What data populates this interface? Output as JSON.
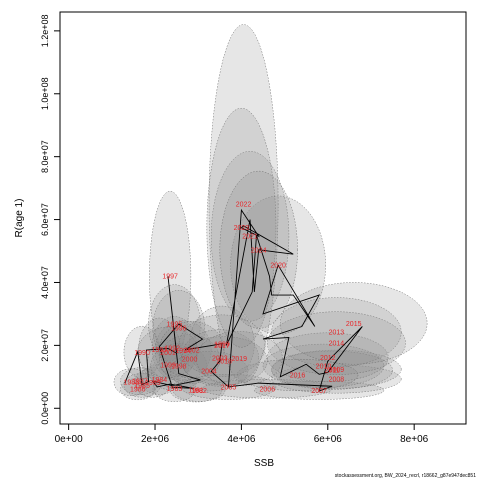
{
  "chart_data": {
    "type": "scatter",
    "xlabel": "SSB",
    "ylabel": "R(age 1)",
    "xlim": [
      -200000,
      9200000
    ],
    "ylim": [
      -5000000,
      126000000
    ],
    "xticks": [
      0,
      2000000,
      4000000,
      6000000,
      8000000
    ],
    "xtick_labels": [
      "0e+00",
      "2e+06",
      "4e+06",
      "6e+06",
      "8e+06"
    ],
    "yticks": [
      0,
      20000000,
      40000000,
      60000000,
      80000000,
      100000000,
      120000000
    ],
    "ytick_labels": [
      "0.0e+00",
      "2.0e+07",
      "4.0e+07",
      "6.0e+07",
      "8.0e+07",
      "1.0e+08",
      "1.2e+08"
    ],
    "footer": "stockassessment.org, BW_2024_recrl, r18662_g87e947dec851",
    "points": [
      {
        "year": "1981",
        "x": 2950000,
        "y": 5800000,
        "rx": 600000,
        "ry": 3800000
      },
      {
        "year": "1982",
        "x": 3020000,
        "y": 5700000,
        "rx": 600000,
        "ry": 3500000
      },
      {
        "year": "1983",
        "x": 2450000,
        "y": 6300000,
        "rx": 500000,
        "ry": 4200000
      },
      {
        "year": "1984",
        "x": 2100000,
        "y": 9200000,
        "rx": 450000,
        "ry": 4800000
      },
      {
        "year": "1985",
        "x": 1700000,
        "y": 7300000,
        "rx": 420000,
        "ry": 3800000
      },
      {
        "year": "1986",
        "x": 1600000,
        "y": 6100000,
        "rx": 400000,
        "ry": 3400000
      },
      {
        "year": "1987",
        "x": 1650000,
        "y": 8600000,
        "rx": 450000,
        "ry": 4300000
      },
      {
        "year": "1988",
        "x": 1450000,
        "y": 8300000,
        "rx": 400000,
        "ry": 4300000
      },
      {
        "year": "1989",
        "x": 1950000,
        "y": 8200000,
        "rx": 420000,
        "ry": 4700000
      },
      {
        "year": "1990",
        "x": 1700000,
        "y": 17800000,
        "rx": 420000,
        "ry": 8300000
      },
      {
        "year": "1991",
        "x": 2100000,
        "y": 18700000,
        "rx": 480000,
        "ry": 10000000
      },
      {
        "year": "1992",
        "x": 2450000,
        "y": 19200000,
        "rx": 520000,
        "ry": 10000000
      },
      {
        "year": "1993",
        "x": 2300000,
        "y": 13800000,
        "rx": 480000,
        "ry": 7800000
      },
      {
        "year": "1994",
        "x": 2650000,
        "y": 18400000,
        "rx": 650000,
        "ry": 9500000
      },
      {
        "year": "1995",
        "x": 2450000,
        "y": 26800000,
        "rx": 600000,
        "ry": 12500000
      },
      {
        "year": "1996",
        "x": 2550000,
        "y": 25500000,
        "rx": 600000,
        "ry": 12000000
      },
      {
        "year": "1997",
        "x": 2350000,
        "y": 42000000,
        "rx": 480000,
        "ry": 27000000
      },
      {
        "year": "1998",
        "x": 2550000,
        "y": 13400000,
        "rx": 650000,
        "ry": 7200000
      },
      {
        "year": "1999",
        "x": 3550000,
        "y": 20500000,
        "rx": 750000,
        "ry": 12000000
      },
      {
        "year": "2000",
        "x": 2800000,
        "y": 15600000,
        "rx": 700000,
        "ry": 7800000
      },
      {
        "year": "2001",
        "x": 2300000,
        "y": 17800000,
        "rx": 700000,
        "ry": 8000000
      },
      {
        "year": "2002",
        "x": 2850000,
        "y": 18600000,
        "rx": 750000,
        "ry": 9000000
      },
      {
        "year": "2003",
        "x": 3500000,
        "y": 16000000,
        "rx": 900000,
        "ry": 9000000
      },
      {
        "year": "2004",
        "x": 3250000,
        "y": 11800000,
        "rx": 900000,
        "ry": 6300000
      },
      {
        "year": "2005",
        "x": 3700000,
        "y": 6800000,
        "rx": 1100000,
        "ry": 4000000
      },
      {
        "year": "2006",
        "x": 4600000,
        "y": 6200000,
        "rx": 1500000,
        "ry": 3000000
      },
      {
        "year": "2007",
        "x": 5800000,
        "y": 5700000,
        "rx": 1500000,
        "ry": 2900000
      },
      {
        "year": "2008",
        "x": 6200000,
        "y": 9300000,
        "rx": 1500000,
        "ry": 4500000
      },
      {
        "year": "2009",
        "x": 6200000,
        "y": 12400000,
        "rx": 1500000,
        "ry": 6100000
      },
      {
        "year": "2010",
        "x": 5900000,
        "y": 13500000,
        "rx": 1400000,
        "ry": 6900000
      },
      {
        "year": "2011",
        "x": 6100000,
        "y": 12100000,
        "rx": 1400000,
        "ry": 6100000
      },
      {
        "year": "2012",
        "x": 6000000,
        "y": 16200000,
        "rx": 1400000,
        "ry": 7800000
      },
      {
        "year": "2013",
        "x": 6200000,
        "y": 24200000,
        "rx": 1500000,
        "ry": 11000000
      },
      {
        "year": "2014",
        "x": 6200000,
        "y": 20700000,
        "rx": 1600000,
        "ry": 10000000
      },
      {
        "year": "2015",
        "x": 6600000,
        "y": 27000000,
        "rx": 1700000,
        "ry": 13000000
      },
      {
        "year": "2016",
        "x": 5300000,
        "y": 10600000,
        "rx": 1400000,
        "ry": 5000000
      },
      {
        "year": "2017",
        "x": 3550000,
        "y": 19900000,
        "rx": 1000000,
        "ry": 9800000
      },
      {
        "year": "2018",
        "x": 3600000,
        "y": 15100000,
        "rx": 1000000,
        "ry": 7700000
      },
      {
        "year": "2019",
        "x": 3950000,
        "y": 15800000,
        "rx": 1000000,
        "ry": 8600000
      },
      {
        "year": "2020",
        "x": 4850000,
        "y": 45500000,
        "rx": 1100000,
        "ry": 22000000
      },
      {
        "year": "2021",
        "x": 4200000,
        "y": 54700000,
        "rx": 900000,
        "ry": 27000000
      },
      {
        "year": "2022",
        "x": 4050000,
        "y": 65000000,
        "rx": 800000,
        "ry": 57000000
      },
      {
        "year": "2023",
        "x": 4000000,
        "y": 57400000,
        "rx": 800000,
        "ry": 38000000
      },
      {
        "year": "2024",
        "x": 4400000,
        "y": 50400000,
        "rx": 900000,
        "ry": 25000000
      }
    ],
    "labeled_points": [
      {
        "year": "1997",
        "x": 2350000,
        "y": 42000000
      },
      {
        "year": "1998",
        "x": 2550000,
        "y": 13400000
      },
      {
        "year": "1990",
        "x": 1700000,
        "y": 17800000
      },
      {
        "year": "1993",
        "x": 2300000,
        "y": 13800000
      }
    ],
    "path": [
      [
        1300000,
        8000000
      ],
      [
        1600000,
        18000000
      ],
      [
        1700000,
        7500000
      ],
      [
        1850000,
        8500000
      ],
      [
        1800000,
        18500000
      ],
      [
        2300000,
        19000000
      ],
      [
        2500000,
        17500000
      ],
      [
        2300000,
        42000000
      ],
      [
        2550000,
        11000000
      ],
      [
        3050000,
        9000000
      ],
      [
        2400000,
        7200000
      ],
      [
        1950000,
        8600000
      ],
      [
        2050000,
        6800000
      ],
      [
        2350000,
        7700000
      ],
      [
        2900000,
        6300000
      ],
      [
        2400000,
        6700000
      ],
      [
        2100000,
        19600000
      ],
      [
        2550000,
        26800000
      ],
      [
        3100000,
        22000000
      ],
      [
        2700000,
        18600000
      ],
      [
        3550000,
        20500000
      ],
      [
        3500000,
        15000000
      ],
      [
        3300000,
        11700000
      ],
      [
        3700000,
        6800000
      ],
      [
        4000000,
        63000000
      ],
      [
        4400000,
        54700000
      ],
      [
        4000000,
        57400000
      ],
      [
        4050000,
        58000000
      ],
      [
        5200000,
        49000000
      ],
      [
        4400000,
        50400000
      ],
      [
        4300000,
        37000000
      ],
      [
        4200000,
        60000000
      ],
      [
        3650000,
        20000000
      ],
      [
        4250000,
        37000000
      ],
      [
        4350000,
        55000000
      ],
      [
        4650000,
        42000000
      ],
      [
        4700000,
        36000000
      ],
      [
        5200000,
        36000000
      ],
      [
        5700000,
        26000000
      ],
      [
        4850000,
        45500000
      ],
      [
        4500000,
        30000000
      ],
      [
        5800000,
        36000000
      ],
      [
        5400000,
        26000000
      ],
      [
        4500000,
        22000000
      ],
      [
        5100000,
        22500000
      ],
      [
        4900000,
        10000000
      ],
      [
        5500000,
        14000000
      ],
      [
        5800000,
        10800000
      ],
      [
        6000000,
        11400000
      ],
      [
        6800000,
        26000000
      ],
      [
        6000000,
        15000000
      ],
      [
        5800000,
        5500000
      ],
      [
        6100000,
        7000000
      ],
      [
        4400000,
        8000000
      ],
      [
        3700000,
        6800000
      ]
    ],
    "year_labels": [
      {
        "year": "1997",
        "x": 2350000,
        "y": 42000000
      },
      {
        "year": "1995",
        "x": 2450000,
        "y": 26800000
      },
      {
        "year": "1996",
        "x": 2550000,
        "y": 25500000
      },
      {
        "year": "1990",
        "x": 1700000,
        "y": 17800000
      },
      {
        "year": "1991",
        "x": 2100000,
        "y": 18700000
      },
      {
        "year": "1992",
        "x": 2400000,
        "y": 19200000
      },
      {
        "year": "1994",
        "x": 2650000,
        "y": 18400000
      },
      {
        "year": "1993",
        "x": 2300000,
        "y": 13800000
      },
      {
        "year": "1998",
        "x": 2550000,
        "y": 13400000
      },
      {
        "year": "1999",
        "x": 3550000,
        "y": 20500000
      },
      {
        "year": "2000",
        "x": 2800000,
        "y": 15600000
      },
      {
        "year": "2001",
        "x": 2300000,
        "y": 17800000
      },
      {
        "year": "2002",
        "x": 2850000,
        "y": 18600000
      },
      {
        "year": "2003",
        "x": 3500000,
        "y": 16000000
      },
      {
        "year": "2004",
        "x": 3250000,
        "y": 11800000
      },
      {
        "year": "2005",
        "x": 3700000,
        "y": 6800000
      },
      {
        "year": "2006",
        "x": 4600000,
        "y": 6200000
      },
      {
        "year": "2007",
        "x": 5800000,
        "y": 5700000
      },
      {
        "year": "2008",
        "x": 6200000,
        "y": 9300000
      },
      {
        "year": "2009",
        "x": 6200000,
        "y": 12400000
      },
      {
        "year": "2010",
        "x": 5900000,
        "y": 13500000
      },
      {
        "year": "2011",
        "x": 6100000,
        "y": 12100000
      },
      {
        "year": "2012",
        "x": 6000000,
        "y": 16200000
      },
      {
        "year": "2013",
        "x": 6200000,
        "y": 24200000
      },
      {
        "year": "2014",
        "x": 6200000,
        "y": 20700000
      },
      {
        "year": "2015",
        "x": 6600000,
        "y": 27000000
      },
      {
        "year": "2016",
        "x": 5300000,
        "y": 10600000
      },
      {
        "year": "2017",
        "x": 3550000,
        "y": 19900000
      },
      {
        "year": "2018",
        "x": 3600000,
        "y": 15100000
      },
      {
        "year": "2019",
        "x": 3950000,
        "y": 15800000
      },
      {
        "year": "2020",
        "x": 4850000,
        "y": 45500000
      },
      {
        "year": "2021",
        "x": 4200000,
        "y": 54700000
      },
      {
        "year": "2022",
        "x": 4050000,
        "y": 65000000
      },
      {
        "year": "2023",
        "x": 4000000,
        "y": 57400000
      },
      {
        "year": "2024",
        "x": 4400000,
        "y": 50400000
      },
      {
        "year": "1981",
        "x": 2950000,
        "y": 5800000
      },
      {
        "year": "1982",
        "x": 3020000,
        "y": 5700000
      },
      {
        "year": "1983",
        "x": 2450000,
        "y": 6300000
      },
      {
        "year": "1984",
        "x": 2100000,
        "y": 9200000
      },
      {
        "year": "1985",
        "x": 1700000,
        "y": 7300000
      },
      {
        "year": "1986",
        "x": 1600000,
        "y": 6100000
      },
      {
        "year": "1987",
        "x": 1650000,
        "y": 8600000
      },
      {
        "year": "1988",
        "x": 1450000,
        "y": 8300000
      },
      {
        "year": "1989",
        "x": 1950000,
        "y": 8200000
      }
    ]
  }
}
